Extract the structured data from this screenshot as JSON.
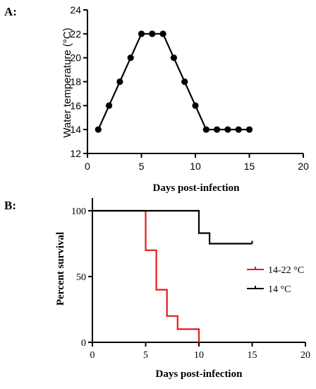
{
  "chart_data": [
    {
      "panel_label": "A:",
      "type": "line",
      "xlabel": "Days post-infection",
      "ylabel": "Water temperature (°C)",
      "xlim": [
        0,
        20
      ],
      "ylim": [
        12,
        24
      ],
      "x_ticks": [
        0,
        5,
        10,
        15,
        20
      ],
      "y_ticks": [
        12,
        14,
        16,
        18,
        20,
        22,
        24
      ],
      "series": [
        {
          "color": "#000000",
          "marker": "circle",
          "x": [
            1,
            2,
            3,
            4,
            5,
            6,
            7,
            8,
            9,
            10,
            11,
            12,
            13,
            14,
            15
          ],
          "y": [
            14,
            16,
            18,
            20,
            22,
            22,
            22,
            20,
            18,
            16,
            14,
            14,
            14,
            14,
            14
          ]
        }
      ]
    },
    {
      "panel_label": "B:",
      "type": "line",
      "step": true,
      "xlabel": "Days post-infection",
      "ylabel": "Percent survival",
      "xlim": [
        0,
        20
      ],
      "ylim": [
        0,
        100
      ],
      "x_ticks": [
        0,
        5,
        10,
        15,
        20
      ],
      "y_ticks": [
        0,
        50,
        100
      ],
      "legend_position": "right",
      "series": [
        {
          "name": "14-22 °C",
          "color": "#e41a1c",
          "x": [
            0,
            5,
            6,
            7,
            8,
            10
          ],
          "y": [
            100,
            70,
            40,
            20,
            10,
            0
          ]
        },
        {
          "name": "14 °C",
          "color": "#000000",
          "x": [
            0,
            10,
            11,
            15
          ],
          "y": [
            100,
            83,
            75,
            75
          ]
        }
      ]
    }
  ]
}
